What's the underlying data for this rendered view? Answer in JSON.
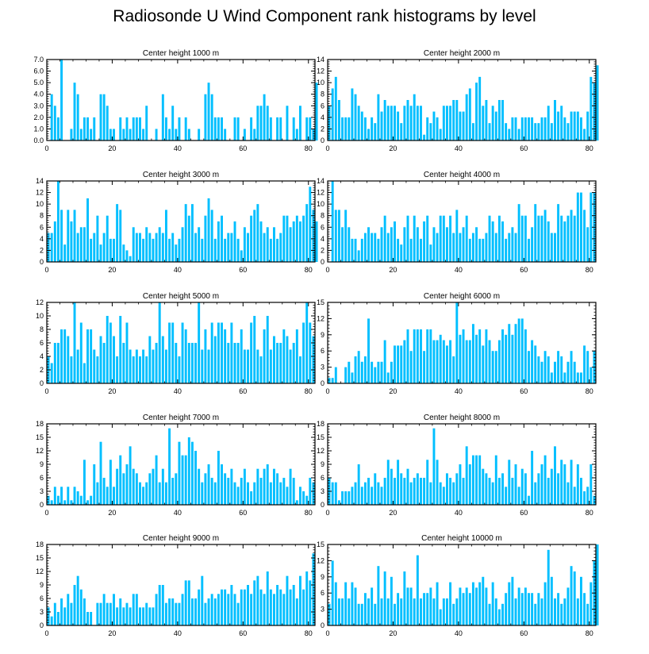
{
  "title": "Radiosonde U Wind Component rank histograms by level",
  "style": {
    "bar_color": "#00bfff",
    "axis_color": "#000000"
  },
  "chart_data": [
    {
      "type": "bar",
      "title": "Center height 1000 m",
      "xlim": [
        0,
        82
      ],
      "ylim": [
        0,
        7
      ],
      "xticks": [
        0,
        20,
        40,
        60,
        80
      ],
      "yticks": [
        0,
        1,
        2,
        3,
        4,
        5,
        6,
        7
      ],
      "ytick_labels": [
        "0.0",
        "1.0",
        "2.0",
        "3.0",
        "4.0",
        "5.0",
        "6.0",
        "7.0"
      ],
      "values": [
        0,
        4,
        3,
        2,
        7,
        0,
        0,
        1,
        5,
        4,
        1,
        2,
        2,
        1,
        2,
        0,
        4,
        4,
        3,
        1,
        1,
        0,
        2,
        1,
        2,
        1,
        2,
        2,
        2,
        1,
        3,
        0,
        0,
        1,
        0,
        4,
        2,
        1,
        3,
        1,
        2,
        0,
        2,
        1,
        0,
        0,
        1,
        0,
        4,
        5,
        4,
        2,
        2,
        2,
        1,
        0,
        0,
        2,
        2,
        0,
        1,
        0,
        2,
        1,
        3,
        3,
        4,
        3,
        2,
        0,
        2,
        2,
        0,
        3,
        0,
        2,
        1,
        3,
        0,
        2,
        2,
        1,
        5
      ]
    },
    {
      "type": "bar",
      "title": "Center height 2000 m",
      "xlim": [
        0,
        82
      ],
      "ylim": [
        0,
        14
      ],
      "xticks": [
        0,
        20,
        40,
        60,
        80
      ],
      "yticks": [
        0,
        2,
        4,
        6,
        8,
        10,
        12,
        14
      ],
      "ytick_labels": [
        "0",
        "2",
        "4",
        "6",
        "8",
        "10",
        "12",
        "14"
      ],
      "values": [
        6,
        9,
        11,
        7,
        4,
        4,
        4,
        9,
        8,
        6,
        5,
        4,
        2,
        4,
        3,
        8,
        5,
        7,
        6,
        6,
        6,
        5,
        3,
        6,
        7,
        6,
        8,
        6,
        6,
        1,
        4,
        3,
        5,
        4,
        2,
        6,
        6,
        6,
        7,
        7,
        5,
        5,
        8,
        9,
        3,
        10,
        11,
        6,
        7,
        3,
        6,
        5,
        7,
        7,
        3,
        2,
        4,
        4,
        2,
        4,
        4,
        4,
        4,
        3,
        3,
        4,
        4,
        6,
        3,
        7,
        5,
        6,
        4,
        3,
        5,
        5,
        5,
        4,
        2,
        5,
        11,
        10,
        13
      ]
    },
    {
      "type": "bar",
      "title": "Center height 3000 m",
      "xlim": [
        0,
        82
      ],
      "ylim": [
        0,
        14
      ],
      "xticks": [
        0,
        20,
        40,
        60,
        80
      ],
      "yticks": [
        0,
        2,
        4,
        6,
        8,
        10,
        12,
        14
      ],
      "ytick_labels": [
        "0",
        "2",
        "4",
        "6",
        "8",
        "10",
        "12",
        "14"
      ],
      "values": [
        5,
        5,
        7,
        14,
        9,
        3,
        9,
        7,
        9,
        5,
        6,
        6,
        11,
        4,
        5,
        8,
        3,
        5,
        8,
        4,
        4,
        10,
        9,
        3,
        2,
        1,
        6,
        5,
        5,
        4,
        6,
        5,
        4,
        5,
        6,
        5,
        9,
        4,
        5,
        3,
        4,
        6,
        10,
        8,
        10,
        5,
        6,
        4,
        8,
        11,
        9,
        4,
        7,
        8,
        4,
        5,
        5,
        7,
        4,
        2,
        6,
        5,
        8,
        9,
        10,
        7,
        5,
        6,
        4,
        6,
        4,
        5,
        8,
        8,
        6,
        7,
        8,
        7,
        8,
        10,
        13,
        9,
        7
      ]
    },
    {
      "type": "bar",
      "title": "Center height 4000 m",
      "xlim": [
        0,
        82
      ],
      "ylim": [
        0,
        14
      ],
      "xticks": [
        0,
        20,
        40,
        60,
        80
      ],
      "yticks": [
        0,
        2,
        4,
        6,
        8,
        10,
        12,
        14
      ],
      "ytick_labels": [
        "0",
        "2",
        "4",
        "6",
        "8",
        "10",
        "12",
        "14"
      ],
      "values": [
        0,
        14,
        9,
        9,
        6,
        9,
        6,
        4,
        4,
        2,
        4,
        5,
        6,
        5,
        5,
        4,
        6,
        8,
        5,
        6,
        7,
        4,
        3,
        6,
        8,
        4,
        8,
        6,
        4,
        7,
        8,
        3,
        6,
        5,
        8,
        8,
        6,
        8,
        5,
        9,
        5,
        6,
        8,
        4,
        5,
        6,
        4,
        4,
        5,
        8,
        7,
        5,
        8,
        7,
        4,
        5,
        6,
        5,
        10,
        8,
        8,
        4,
        6,
        10,
        8,
        8,
        9,
        7,
        5,
        5,
        10,
        8,
        7,
        8,
        9,
        8,
        12,
        12,
        9,
        6,
        12,
        12
      ]
    },
    {
      "type": "bar",
      "title": "Center height 5000 m",
      "xlim": [
        0,
        82
      ],
      "ylim": [
        0,
        12
      ],
      "xticks": [
        0,
        20,
        40,
        60,
        80
      ],
      "yticks": [
        0,
        2,
        4,
        6,
        8,
        10,
        12
      ],
      "ytick_labels": [
        "0",
        "2",
        "4",
        "6",
        "8",
        "10",
        "12"
      ],
      "values": [
        4,
        3,
        6,
        6,
        8,
        8,
        7,
        4,
        12,
        5,
        9,
        3,
        8,
        8,
        5,
        4,
        7,
        6,
        10,
        9,
        7,
        4,
        10,
        6,
        9,
        5,
        4,
        5,
        4,
        5,
        4,
        7,
        5,
        6,
        12,
        7,
        5,
        9,
        9,
        6,
        4,
        9,
        8,
        6,
        6,
        6,
        12,
        5,
        8,
        5,
        9,
        7,
        9,
        9,
        8,
        6,
        9,
        6,
        6,
        8,
        5,
        5,
        9,
        10,
        5,
        4,
        8,
        10,
        5,
        7,
        6,
        6,
        8,
        7,
        5,
        6,
        8,
        4,
        9,
        12,
        9,
        7
      ]
    },
    {
      "type": "bar",
      "title": "Center height 6000 m",
      "xlim": [
        0,
        82
      ],
      "ylim": [
        0,
        15
      ],
      "xticks": [
        0,
        20,
        40,
        60,
        80
      ],
      "yticks": [
        0,
        3,
        6,
        9,
        12,
        15
      ],
      "ytick_labels": [
        "0",
        "3",
        "6",
        "9",
        "12",
        "15"
      ],
      "values": [
        1,
        1,
        3,
        0,
        0,
        3,
        4,
        2,
        5,
        6,
        4,
        5,
        12,
        4,
        3,
        4,
        4,
        8,
        2,
        4,
        7,
        7,
        7,
        8,
        10,
        6,
        10,
        10,
        10,
        6,
        10,
        10,
        8,
        8,
        9,
        8,
        7,
        8,
        5,
        15,
        9,
        10,
        8,
        8,
        11,
        9,
        10,
        7,
        10,
        8,
        6,
        6,
        8,
        10,
        9,
        11,
        9,
        11,
        12,
        12,
        10,
        6,
        8,
        7,
        5,
        4,
        6,
        5,
        2,
        4,
        6,
        5,
        2,
        4,
        6,
        4,
        2,
        2,
        7,
        6,
        3,
        6
      ]
    },
    {
      "type": "bar",
      "title": "Center height 7000 m",
      "xlim": [
        0,
        82
      ],
      "ylim": [
        0,
        18
      ],
      "xticks": [
        0,
        20,
        40,
        60,
        80
      ],
      "yticks": [
        0,
        3,
        6,
        9,
        12,
        15,
        18
      ],
      "ytick_labels": [
        "0",
        "3",
        "6",
        "9",
        "12",
        "15",
        "18"
      ],
      "values": [
        2,
        1,
        4,
        2,
        4,
        1,
        4,
        1,
        4,
        3,
        2,
        10,
        1,
        2,
        9,
        5,
        14,
        6,
        4,
        10,
        4,
        8,
        11,
        7,
        9,
        13,
        8,
        7,
        5,
        4,
        5,
        7,
        8,
        11,
        5,
        8,
        5,
        17,
        6,
        7,
        14,
        11,
        11,
        15,
        14,
        12,
        8,
        5,
        7,
        9,
        6,
        5,
        12,
        9,
        7,
        6,
        8,
        5,
        4,
        6,
        8,
        5,
        3,
        5,
        8,
        6,
        8,
        9,
        5,
        8,
        7,
        5,
        6,
        4,
        8,
        6,
        1,
        4,
        3,
        2,
        6,
        5
      ]
    },
    {
      "type": "bar",
      "title": "Center height 8000 m",
      "xlim": [
        0,
        82
      ],
      "ylim": [
        0,
        18
      ],
      "xticks": [
        0,
        20,
        40,
        60,
        80
      ],
      "yticks": [
        0,
        3,
        6,
        9,
        12,
        15,
        18
      ],
      "ytick_labels": [
        "0",
        "3",
        "6",
        "9",
        "12",
        "15",
        "18"
      ],
      "values": [
        6,
        5,
        5,
        1,
        3,
        3,
        3,
        4,
        5,
        9,
        4,
        5,
        6,
        4,
        7,
        5,
        4,
        6,
        10,
        8,
        6,
        10,
        7,
        6,
        8,
        5,
        6,
        7,
        6,
        6,
        10,
        5,
        17,
        10,
        5,
        4,
        7,
        6,
        5,
        7,
        9,
        6,
        13,
        9,
        11,
        11,
        11,
        8,
        7,
        6,
        5,
        11,
        6,
        7,
        4,
        10,
        6,
        9,
        4,
        8,
        7,
        2,
        12,
        5,
        7,
        9,
        11,
        6,
        8,
        13,
        7,
        10,
        9,
        5,
        10,
        4,
        9,
        6,
        3,
        4,
        9,
        2
      ]
    },
    {
      "type": "bar",
      "title": "Center height 9000 m",
      "xlim": [
        0,
        82
      ],
      "ylim": [
        0,
        18
      ],
      "xticks": [
        0,
        20,
        40,
        60,
        80
      ],
      "yticks": [
        0,
        3,
        6,
        9,
        12,
        15,
        18
      ],
      "ytick_labels": [
        "0",
        "3",
        "6",
        "9",
        "12",
        "15",
        "18"
      ],
      "values": [
        4,
        2,
        5,
        3,
        6,
        4,
        7,
        5,
        9,
        11,
        8,
        6,
        3,
        3,
        0,
        5,
        5,
        7,
        5,
        5,
        7,
        4,
        6,
        4,
        5,
        4,
        7,
        7,
        4,
        4,
        5,
        4,
        4,
        7,
        9,
        9,
        5,
        6,
        6,
        5,
        5,
        7,
        10,
        10,
        6,
        6,
        8,
        11,
        5,
        6,
        7,
        6,
        7,
        8,
        8,
        7,
        9,
        7,
        5,
        8,
        8,
        9,
        7,
        10,
        11,
        8,
        7,
        12,
        8,
        7,
        9,
        8,
        7,
        11,
        8,
        9,
        6,
        11,
        8,
        12,
        10,
        16
      ]
    },
    {
      "type": "bar",
      "title": "Center height 10000 m",
      "xlim": [
        0,
        82
      ],
      "ylim": [
        0,
        15
      ],
      "xticks": [
        0,
        20,
        40,
        60,
        80
      ],
      "yticks": [
        0,
        3,
        6,
        9,
        12,
        15
      ],
      "ytick_labels": [
        "0",
        "3",
        "6",
        "9",
        "12",
        "15"
      ],
      "values": [
        4,
        12,
        8,
        5,
        5,
        8,
        5,
        8,
        7,
        4,
        4,
        6,
        5,
        7,
        4,
        11,
        5,
        10,
        5,
        9,
        4,
        6,
        5,
        10,
        7,
        7,
        5,
        13,
        5,
        6,
        6,
        7,
        5,
        8,
        3,
        5,
        5,
        8,
        4,
        5,
        7,
        6,
        7,
        6,
        8,
        7,
        8,
        9,
        7,
        4,
        8,
        5,
        3,
        4,
        6,
        8,
        9,
        5,
        7,
        6,
        7,
        6,
        6,
        4,
        6,
        5,
        8,
        14,
        9,
        5,
        6,
        4,
        5,
        7,
        11,
        10,
        5,
        9,
        6,
        4,
        8,
        12,
        15
      ]
    }
  ]
}
